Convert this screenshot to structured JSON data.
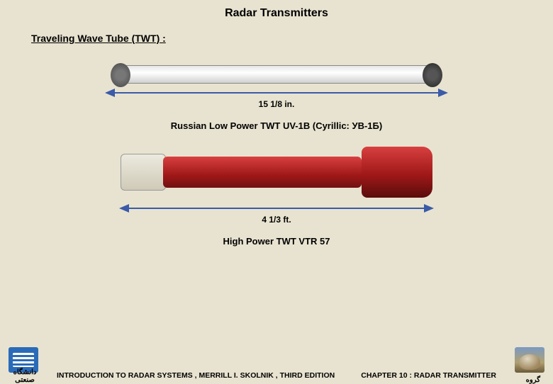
{
  "title": "Radar Transmitters",
  "subtitle": "Traveling Wave Tube (TWT) :",
  "figure1": {
    "dimension": "15  1/8 in.",
    "caption": "Russian Low  Power TWT UV-1B (Cyrillic: УВ-1Б)"
  },
  "figure2": {
    "dimension": "4  1/3 ft.",
    "caption": "High  Power  TWT VTR 57"
  },
  "footer": {
    "left_label": "دانشگاه صنعتی",
    "right_label": "گروه",
    "book": "INTRODUCTION  TO  RADAR  SYSTEMS ,  MERRILL I. SKOLNIK ,  THIRD EDITION",
    "chapter": "CHAPTER 10 :   RADAR TRANSMITTER"
  },
  "colors": {
    "background": "#e8e3d0",
    "arrow": "#3a5ba8",
    "tube_red": "#a01818"
  }
}
